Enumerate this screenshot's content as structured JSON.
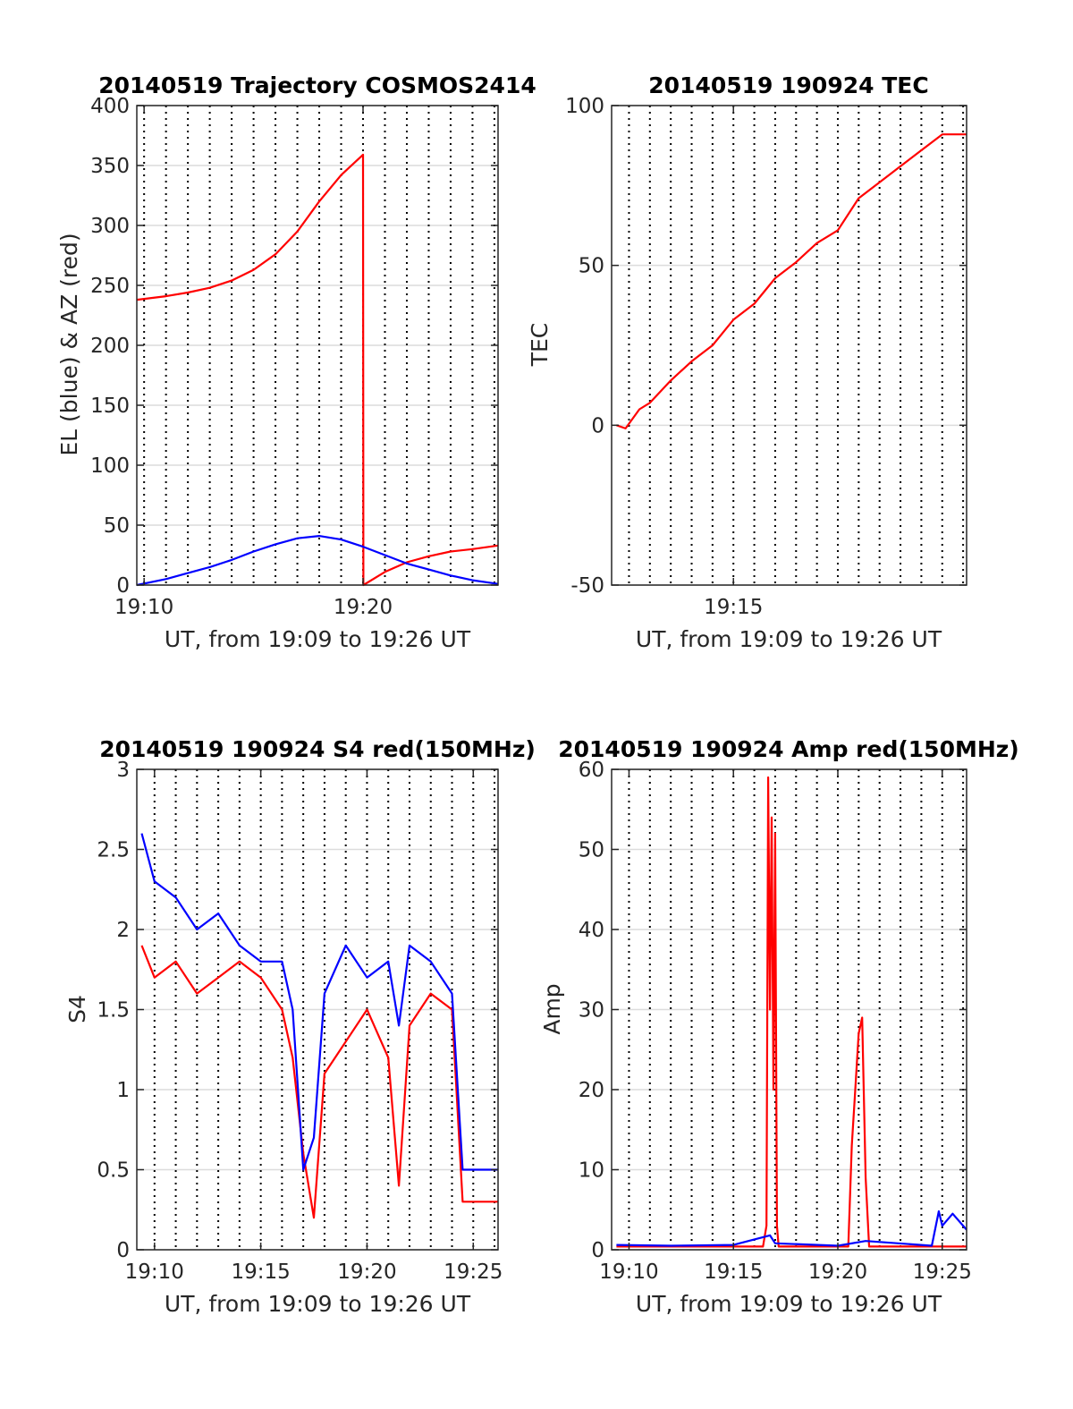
{
  "colors": {
    "red": "#ff0000",
    "blue": "#0000ff",
    "axis": "#262626",
    "grid": "#dcdcdc"
  },
  "chart_data": [
    {
      "id": "traj",
      "type": "line",
      "title": "20140519 Trajectory COSMOS2414",
      "xlabel": "UT, from 19:09 to 19:26 UT",
      "ylabel": "EL (blue) & AZ (red)",
      "xlim": [
        "19:09:40",
        "19:26:10"
      ],
      "ylim": [
        0,
        400
      ],
      "yticks": [
        0,
        50,
        100,
        150,
        200,
        250,
        300,
        350,
        400
      ],
      "xticks": [
        {
          "t": "19:10",
          "label": "19:10"
        },
        {
          "t": "19:20",
          "label": "19:20"
        }
      ],
      "vlines_every_min": true,
      "hgrid": true,
      "series": [
        {
          "color": "red",
          "x": [
            "19:09:40",
            "19:11:00",
            "19:12:00",
            "19:13:00",
            "19:14:00",
            "19:15:00",
            "19:16:00",
            "19:17:00",
            "19:18:00",
            "19:19:00",
            "19:20:00",
            "19:20:01",
            "19:21:00",
            "19:22:00",
            "19:23:00",
            "19:24:00",
            "19:25:00",
            "19:26:10"
          ],
          "y": [
            238,
            241,
            244,
            248,
            254,
            263,
            276,
            295,
            320,
            342,
            359,
            0,
            11,
            19,
            24,
            28,
            30,
            33
          ]
        },
        {
          "color": "blue",
          "x": [
            "19:09:40",
            "19:11:00",
            "19:12:00",
            "19:13:00",
            "19:14:00",
            "19:15:00",
            "19:16:00",
            "19:17:00",
            "19:18:00",
            "19:19:00",
            "19:20:00",
            "19:21:00",
            "19:22:00",
            "19:23:00",
            "19:24:00",
            "19:25:00",
            "19:26:10"
          ],
          "y": [
            0,
            5,
            10,
            15,
            21,
            28,
            34,
            39,
            41,
            38,
            32,
            25,
            18,
            13,
            8,
            4,
            1
          ]
        }
      ]
    },
    {
      "id": "tec",
      "type": "line",
      "title": "20140519 190924 TEC",
      "xlabel": "UT, from 19:09 to 19:26 UT",
      "ylabel": "TEC",
      "xlim": [
        "19:09:10",
        "19:26:10"
      ],
      "ylim": [
        -50,
        100
      ],
      "yticks": [
        -50,
        0,
        50,
        100
      ],
      "xticks": [
        {
          "t": "19:15",
          "label": "19:15"
        }
      ],
      "vlines_every_min": true,
      "hgrid": true,
      "series": [
        {
          "color": "red",
          "x": [
            "19:09:24",
            "19:09:50",
            "19:10:30",
            "19:11:00",
            "19:12:00",
            "19:13:00",
            "19:14:00",
            "19:15:00",
            "19:16:00",
            "19:17:00",
            "19:18:00",
            "19:19:00",
            "19:20:00",
            "19:21:00",
            "19:22:00",
            "19:23:00",
            "19:24:00",
            "19:25:00",
            "19:26:10"
          ],
          "y": [
            0,
            -1,
            5,
            7,
            14,
            20,
            25,
            33,
            38,
            46,
            51,
            57,
            61,
            71,
            76,
            81,
            86,
            91,
            91
          ]
        }
      ]
    },
    {
      "id": "s4",
      "type": "line",
      "title": "20140519 190924 S4 red(150MHz)",
      "xlabel": "UT, from 19:09 to 19:26 UT",
      "ylabel": "S4",
      "xlim": [
        "19:09:10",
        "19:26:10"
      ],
      "ylim": [
        0,
        3
      ],
      "yticks": [
        0,
        0.5,
        1,
        1.5,
        2,
        2.5,
        3
      ],
      "xticks": [
        {
          "t": "19:10",
          "label": "19:10"
        },
        {
          "t": "19:15",
          "label": "19:15"
        },
        {
          "t": "19:20",
          "label": "19:20"
        },
        {
          "t": "19:25",
          "label": "19:25"
        }
      ],
      "vlines_every_min": true,
      "hgrid": true,
      "series": [
        {
          "color": "red",
          "x": [
            "19:09:24",
            "19:10:00",
            "19:11:00",
            "19:12:00",
            "19:13:00",
            "19:14:00",
            "19:15:00",
            "19:16:00",
            "19:16:30",
            "19:17:00",
            "19:17:30",
            "19:18:00",
            "19:19:00",
            "19:20:00",
            "19:21:00",
            "19:21:30",
            "19:22:00",
            "19:23:00",
            "19:24:00",
            "19:24:30",
            "19:25:00",
            "19:26:10"
          ],
          "y": [
            1.9,
            1.7,
            1.8,
            1.6,
            1.7,
            1.8,
            1.7,
            1.5,
            1.2,
            0.6,
            0.2,
            1.1,
            1.3,
            1.5,
            1.2,
            0.4,
            1.4,
            1.6,
            1.5,
            0.3,
            0.3,
            0.3
          ]
        },
        {
          "color": "blue",
          "x": [
            "19:09:24",
            "19:10:00",
            "19:11:00",
            "19:12:00",
            "19:13:00",
            "19:14:00",
            "19:15:00",
            "19:16:00",
            "19:16:30",
            "19:17:00",
            "19:17:30",
            "19:18:00",
            "19:19:00",
            "19:20:00",
            "19:21:00",
            "19:21:30",
            "19:22:00",
            "19:23:00",
            "19:24:00",
            "19:24:30",
            "19:25:00",
            "19:26:10"
          ],
          "y": [
            2.6,
            2.3,
            2.2,
            2.0,
            2.1,
            1.9,
            1.8,
            1.8,
            1.5,
            0.5,
            0.7,
            1.6,
            1.9,
            1.7,
            1.8,
            1.4,
            1.9,
            1.8,
            1.6,
            0.5,
            0.5,
            0.5
          ]
        }
      ]
    },
    {
      "id": "amp",
      "type": "line",
      "title": "20140519 190924 Amp red(150MHz)",
      "xlabel": "UT, from 19:09 to 19:26 UT",
      "ylabel": "Amp",
      "xlim": [
        "19:09:10",
        "19:26:10"
      ],
      "ylim": [
        0,
        60
      ],
      "yticks": [
        0,
        10,
        20,
        30,
        40,
        50,
        60
      ],
      "xticks": [
        {
          "t": "19:10",
          "label": "19:10"
        },
        {
          "t": "19:15",
          "label": "19:15"
        },
        {
          "t": "19:20",
          "label": "19:20"
        },
        {
          "t": "19:25",
          "label": "19:25"
        }
      ],
      "vlines_every_min": true,
      "hgrid": true,
      "series": [
        {
          "color": "red",
          "x": [
            "19:09:24",
            "19:16:25",
            "19:16:35",
            "19:16:40",
            "19:16:45",
            "19:16:50",
            "19:16:55",
            "19:17:00",
            "19:17:05",
            "19:17:10",
            "19:20:30",
            "19:20:40",
            "19:20:50",
            "19:21:00",
            "19:21:10",
            "19:21:20",
            "19:21:30",
            "19:24:50",
            "19:25:00",
            "19:26:10"
          ],
          "y": [
            0.4,
            0.4,
            3,
            59,
            30,
            54,
            20,
            52,
            3,
            0.4,
            0.4,
            13,
            20,
            27,
            29,
            9,
            0.4,
            0.4,
            0.4,
            0.4
          ]
        },
        {
          "color": "blue",
          "x": [
            "19:09:24",
            "19:12:00",
            "19:15:00",
            "19:16:45",
            "19:17:00",
            "19:20:00",
            "19:21:20",
            "19:24:30",
            "19:24:50",
            "19:25:00",
            "19:25:30",
            "19:26:10"
          ],
          "y": [
            0.6,
            0.5,
            0.6,
            1.8,
            0.8,
            0.5,
            1.1,
            0.5,
            4.8,
            3.0,
            4.5,
            2.5
          ]
        }
      ]
    }
  ]
}
